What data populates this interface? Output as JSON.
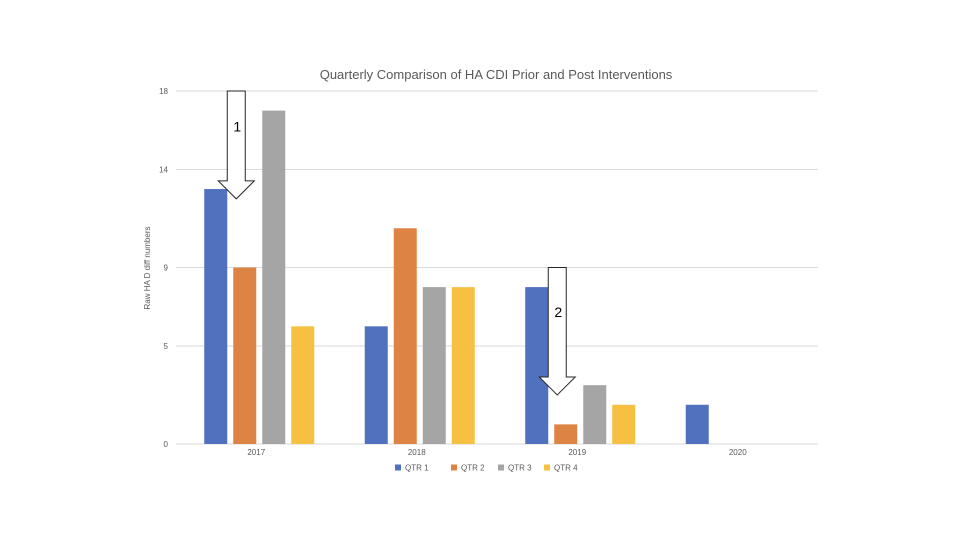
{
  "chart_data": {
    "type": "bar",
    "title": "Quarterly Comparison of HA CDI Prior and Post Interventions",
    "xlabel": "",
    "ylabel": "Raw HA D diff numbers",
    "categories": [
      "2017",
      "2018",
      "2019",
      "2020"
    ],
    "yticks": [
      0,
      5,
      9,
      14,
      18
    ],
    "ylim": [
      0,
      18
    ],
    "grid": true,
    "legend_position": "bottom",
    "series": [
      {
        "name": "QTR 1",
        "color": "#4f71be",
        "values": [
          13,
          6,
          8,
          2
        ]
      },
      {
        "name": "QTR 2",
        "color": "#dd8344",
        "values": [
          9,
          11,
          1,
          null
        ]
      },
      {
        "name": "QTR 3",
        "color": "#a5a5a5",
        "values": [
          17,
          8,
          3,
          null
        ]
      },
      {
        "name": "QTR 4",
        "color": "#f6c143",
        "values": [
          6,
          8,
          2,
          null
        ]
      }
    ],
    "annotations": [
      {
        "label": "1",
        "category": "2017",
        "from_value": 18,
        "to_value": 12.5,
        "shape": "down-arrow"
      },
      {
        "label": "2",
        "category": "2019",
        "from_value": 9,
        "to_value": 2.5,
        "shape": "down-arrow"
      }
    ]
  }
}
